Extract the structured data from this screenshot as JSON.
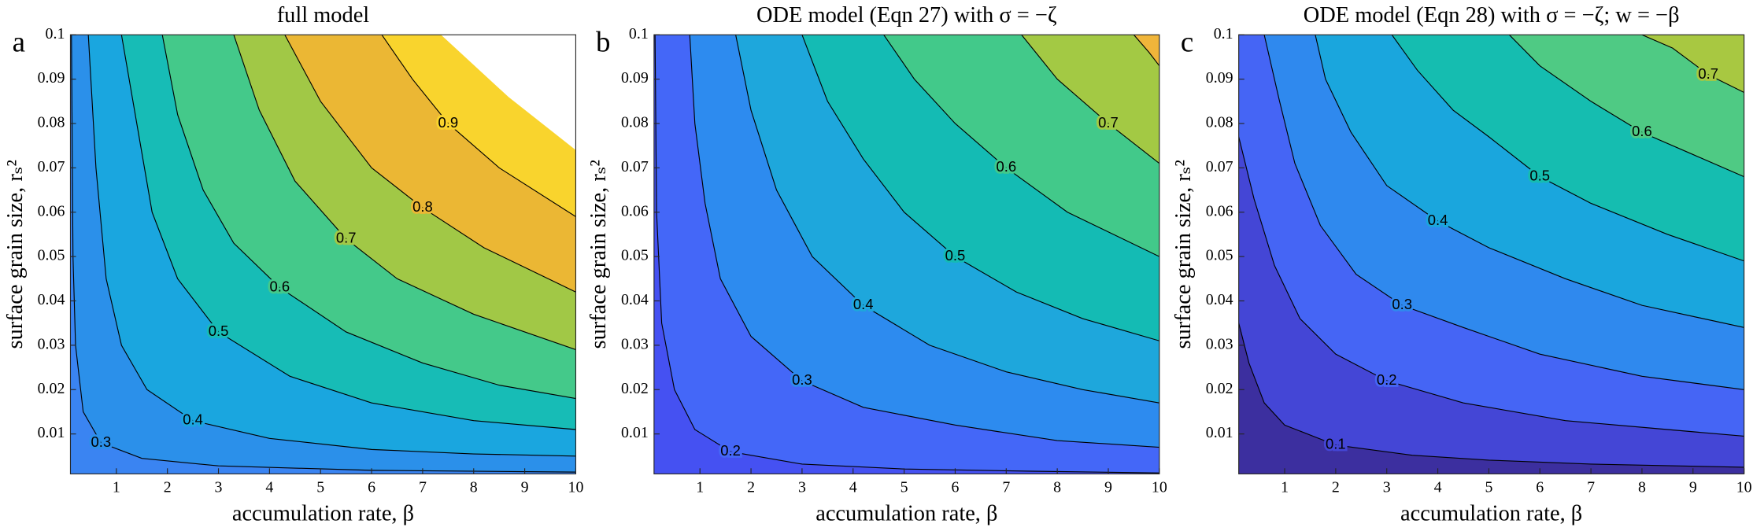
{
  "chart_data": [
    {
      "type": "contour",
      "panel": "a",
      "title": "full model",
      "xlabel": "accumulation rate, β",
      "ylabel": "surface grain size, rₛ²",
      "xlim": [
        0.1,
        10
      ],
      "ylim": [
        0.001,
        0.1
      ],
      "xticks": [
        1,
        2,
        3,
        4,
        5,
        6,
        7,
        8,
        9,
        10
      ],
      "yticks": [
        0.01,
        0.02,
        0.03,
        0.04,
        0.05,
        0.06,
        0.07,
        0.08,
        0.09,
        0.1
      ],
      "colors": [
        "#3a84f2",
        "#2b90ea",
        "#1aa6df",
        "#17bcb6",
        "#44c98a",
        "#a1c846",
        "#ebb734",
        "#f9d42d"
      ],
      "contours": [
        {
          "level": 0.3,
          "x": [
            0.12,
            0.15,
            0.2,
            0.35,
            0.7,
            1.5,
            3,
            6,
            10
          ],
          "y": [
            0.1,
            0.05,
            0.03,
            0.015,
            0.008,
            0.0045,
            0.0028,
            0.0018,
            0.0014
          ]
        },
        {
          "level": 0.4,
          "x": [
            0.45,
            0.6,
            0.8,
            1.1,
            1.6,
            2.5,
            4,
            6,
            8,
            10
          ],
          "y": [
            0.1,
            0.07,
            0.045,
            0.03,
            0.02,
            0.013,
            0.009,
            0.0065,
            0.0055,
            0.005
          ]
        },
        {
          "level": 0.5,
          "x": [
            1.1,
            1.4,
            1.7,
            2.2,
            3,
            4.4,
            6,
            8,
            10
          ],
          "y": [
            0.1,
            0.08,
            0.06,
            0.045,
            0.033,
            0.023,
            0.017,
            0.013,
            0.011
          ]
        },
        {
          "level": 0.6,
          "x": [
            1.9,
            2.2,
            2.7,
            3.3,
            4.2,
            5.5,
            7,
            8.5,
            10
          ],
          "y": [
            0.1,
            0.082,
            0.065,
            0.053,
            0.043,
            0.033,
            0.026,
            0.021,
            0.018
          ]
        },
        {
          "level": 0.7,
          "x": [
            3.3,
            3.8,
            4.5,
            5.5,
            6.5,
            8,
            10
          ],
          "y": [
            0.1,
            0.083,
            0.067,
            0.054,
            0.045,
            0.037,
            0.029
          ]
        },
        {
          "level": 0.8,
          "x": [
            4.3,
            5,
            6,
            7,
            8.2,
            10
          ],
          "y": [
            0.1,
            0.085,
            0.07,
            0.061,
            0.052,
            0.042
          ]
        },
        {
          "level": 0.9,
          "x": [
            6.2,
            6.8,
            7.5,
            8.5,
            10
          ],
          "y": [
            0.1,
            0.09,
            0.08,
            0.07,
            0.059
          ]
        }
      ],
      "blank_region": {
        "x": [
          7.36,
          8.68,
          10
        ],
        "y": [
          0.1,
          0.086,
          0.074
        ]
      }
    },
    {
      "type": "contour",
      "panel": "b",
      "title": "ODE model (Eqn 27) with σ = −ζ",
      "xlabel": "accumulation rate, β",
      "ylabel": "surface grain size, rₛ²",
      "xlim": [
        0.1,
        10
      ],
      "ylim": [
        0.001,
        0.1
      ],
      "xticks": [
        1,
        2,
        3,
        4,
        5,
        6,
        7,
        8,
        9,
        10
      ],
      "yticks": [
        0.01,
        0.02,
        0.03,
        0.04,
        0.05,
        0.06,
        0.07,
        0.08,
        0.09,
        0.1
      ],
      "colors": [
        "#4551f2",
        "#4467f8",
        "#2d8bef",
        "#1ea7dc",
        "#14bbb4",
        "#42c98a",
        "#a3c944",
        "#f0b53a"
      ],
      "contours": [
        {
          "level": 0.2,
          "x": [
            0.12,
            0.15,
            0.25,
            0.5,
            0.9,
            1.6,
            3,
            5,
            7.5,
            10
          ],
          "y": [
            0.1,
            0.06,
            0.035,
            0.02,
            0.011,
            0.006,
            0.0032,
            0.0021,
            0.0016,
            0.0012
          ]
        },
        {
          "level": 0.3,
          "x": [
            0.8,
            0.9,
            1.1,
            1.4,
            2,
            3,
            4.2,
            6,
            8,
            10
          ],
          "y": [
            0.1,
            0.08,
            0.062,
            0.045,
            0.032,
            0.022,
            0.016,
            0.012,
            0.0085,
            0.007
          ]
        },
        {
          "level": 0.4,
          "x": [
            1.7,
            2,
            2.5,
            3.2,
            4.2,
            5.5,
            7,
            8.5,
            10
          ],
          "y": [
            0.1,
            0.083,
            0.065,
            0.05,
            0.039,
            0.03,
            0.024,
            0.02,
            0.017
          ]
        },
        {
          "level": 0.5,
          "x": [
            3,
            3.5,
            4.2,
            5,
            6,
            7.2,
            8.5,
            10
          ],
          "y": [
            0.1,
            0.085,
            0.072,
            0.06,
            0.05,
            0.042,
            0.036,
            0.031
          ]
        },
        {
          "level": 0.6,
          "x": [
            4.6,
            5.2,
            6,
            7,
            8.2,
            10
          ],
          "y": [
            0.1,
            0.09,
            0.08,
            0.07,
            0.06,
            0.05
          ]
        },
        {
          "level": 0.7,
          "x": [
            7.3,
            8,
            9,
            10
          ],
          "y": [
            0.1,
            0.09,
            0.08,
            0.071
          ]
        },
        {
          "level": 0.8,
          "x": [
            9.5,
            9.8,
            10
          ],
          "y": [
            0.1,
            0.096,
            0.093
          ]
        }
      ]
    },
    {
      "type": "contour",
      "panel": "c",
      "title": "ODE model (Eqn 28) with σ = −ζ; w = −β",
      "xlabel": "accumulation rate, β",
      "ylabel": "surface grain size, rₛ²",
      "xlim": [
        0.1,
        10
      ],
      "ylim": [
        0.001,
        0.1
      ],
      "xticks": [
        1,
        2,
        3,
        4,
        5,
        6,
        7,
        8,
        9,
        10
      ],
      "yticks": [
        0.01,
        0.02,
        0.03,
        0.04,
        0.05,
        0.06,
        0.07,
        0.08,
        0.09,
        0.1
      ],
      "colors": [
        "#3c2f9f",
        "#4446d6",
        "#4565f5",
        "#2f89ee",
        "#1aa6dd",
        "#15bdb0",
        "#4fca84",
        "#a8c841"
      ],
      "contours": [
        {
          "level": 0.1,
          "x": [
            0.1,
            0.3,
            0.6,
            1,
            2,
            3.5,
            5,
            7,
            10
          ],
          "y": [
            0.035,
            0.026,
            0.017,
            0.012,
            0.0075,
            0.0052,
            0.0041,
            0.0032,
            0.0025
          ]
        },
        {
          "level": 0.2,
          "x": [
            0.1,
            0.4,
            0.8,
            1.3,
            2,
            3,
            4.5,
            6.5,
            8.5,
            10
          ],
          "y": [
            0.077,
            0.063,
            0.048,
            0.036,
            0.028,
            0.022,
            0.017,
            0.013,
            0.011,
            0.0095
          ]
        },
        {
          "level": 0.3,
          "x": [
            0.6,
            0.9,
            1.2,
            1.7,
            2.4,
            3.3,
            4.5,
            6,
            8,
            10
          ],
          "y": [
            0.1,
            0.085,
            0.071,
            0.057,
            0.046,
            0.039,
            0.034,
            0.028,
            0.023,
            0.02
          ]
        },
        {
          "level": 0.4,
          "x": [
            1.6,
            1.8,
            2.3,
            3,
            4,
            5,
            6.5,
            8,
            10
          ],
          "y": [
            0.1,
            0.09,
            0.078,
            0.066,
            0.058,
            0.052,
            0.045,
            0.039,
            0.034
          ]
        },
        {
          "level": 0.5,
          "x": [
            3.1,
            3.6,
            4.3,
            5,
            6,
            7,
            8.5,
            10
          ],
          "y": [
            0.1,
            0.092,
            0.083,
            0.077,
            0.068,
            0.062,
            0.055,
            0.049
          ]
        },
        {
          "level": 0.6,
          "x": [
            5.4,
            6,
            7,
            8,
            9,
            10
          ],
          "y": [
            0.1,
            0.093,
            0.085,
            0.078,
            0.073,
            0.068
          ]
        },
        {
          "level": 0.7,
          "x": [
            8,
            8.6,
            9.3,
            10
          ],
          "y": [
            0.1,
            0.097,
            0.091,
            0.087
          ]
        }
      ]
    }
  ]
}
